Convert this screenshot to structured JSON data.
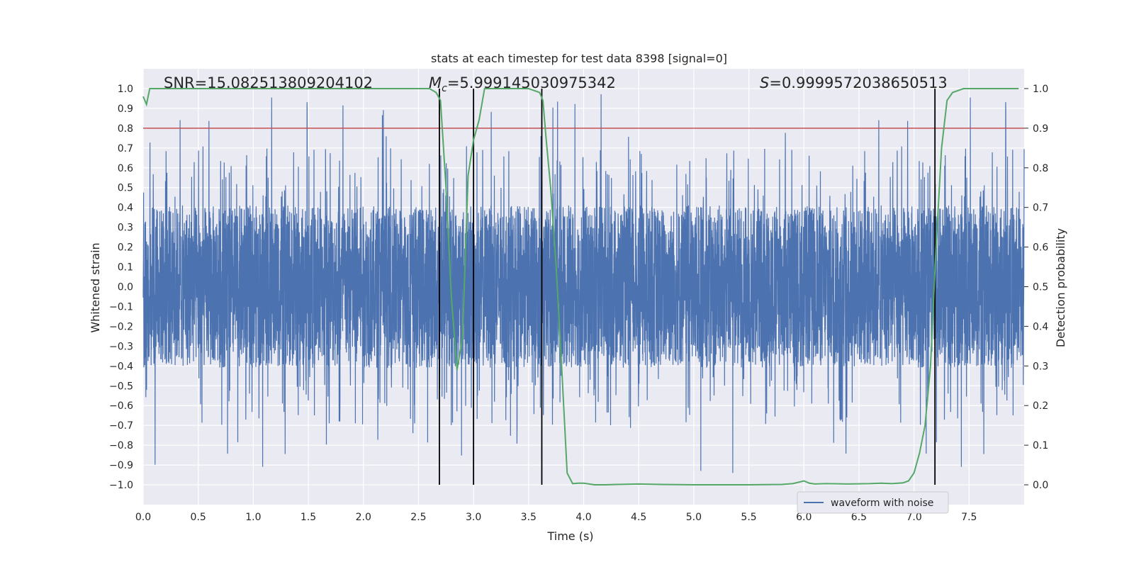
{
  "chart_data": {
    "type": "line",
    "title": "stats at each timestep for test data 8398 [signal=0]",
    "xlabel": "Time (s)",
    "ylabel": "Whitened strain",
    "y2label": "Detection probability",
    "xlim": [
      0.0,
      8.0
    ],
    "ylim": [
      -1.1,
      1.1
    ],
    "y2lim": [
      -0.05,
      1.05
    ],
    "xticks": [
      "0.0",
      "0.5",
      "1.0",
      "1.5",
      "2.0",
      "2.5",
      "3.0",
      "3.5",
      "4.0",
      "4.5",
      "5.0",
      "5.5",
      "6.0",
      "6.5",
      "7.0",
      "7.5"
    ],
    "yticks": [
      "−1.0",
      "−0.9",
      "−0.8",
      "−0.7",
      "−0.6",
      "−0.5",
      "−0.4",
      "−0.3",
      "−0.2",
      "−0.1",
      "0.0",
      "0.1",
      "0.2",
      "0.3",
      "0.4",
      "0.5",
      "0.6",
      "0.7",
      "0.8",
      "0.9",
      "1.0"
    ],
    "y2ticks": [
      "0.0",
      "0.1",
      "0.2",
      "0.3",
      "0.4",
      "0.5",
      "0.6",
      "0.7",
      "0.8",
      "0.9",
      "1.0"
    ],
    "annotations": {
      "snr": "SNR=15.082513809204102",
      "mc_symbol": "M",
      "mc_sub": "c",
      "mc_value": "=5.999145030975342",
      "s_symbol": "S",
      "s_value": "=0.9999572038650513"
    },
    "threshold": {
      "value": 0.9,
      "color": "#c44e52"
    },
    "vertical_lines": [
      2.69,
      3.0,
      3.62,
      7.19
    ],
    "series": [
      {
        "name": "waveform with noise",
        "color": "#4c72b0",
        "axis": "left",
        "description": "noise, amplitude mostly within ±0.6, peaks up to ±1.0"
      },
      {
        "name": "detection probability",
        "color": "#55a868",
        "axis": "right",
        "x": [
          0.0,
          0.03,
          0.06,
          0.1,
          0.2,
          0.5,
          1.0,
          1.5,
          2.0,
          2.5,
          2.6,
          2.66,
          2.7,
          2.75,
          2.8,
          2.85,
          2.9,
          2.95,
          3.0,
          3.05,
          3.1,
          3.15,
          3.2,
          3.3,
          3.5,
          3.6,
          3.63,
          3.66,
          3.7,
          3.75,
          3.8,
          3.85,
          3.9,
          3.95,
          4.0,
          4.1,
          4.2,
          4.3,
          4.5,
          4.7,
          5.0,
          5.5,
          5.8,
          5.9,
          6.0,
          6.05,
          6.1,
          6.2,
          6.4,
          6.6,
          6.7,
          6.8,
          6.9,
          6.95,
          7.0,
          7.05,
          7.1,
          7.15,
          7.2,
          7.25,
          7.3,
          7.35,
          7.45,
          7.6,
          7.8,
          7.95
        ],
        "values": [
          0.98,
          0.96,
          1.0,
          1.0,
          1.0,
          1.0,
          1.0,
          1.0,
          1.0,
          1.0,
          1.0,
          0.99,
          0.97,
          0.75,
          0.47,
          0.29,
          0.37,
          0.78,
          0.87,
          0.92,
          1.0,
          1.0,
          1.0,
          1.0,
          1.0,
          0.99,
          0.97,
          0.87,
          0.75,
          0.55,
          0.3,
          0.03,
          0.003,
          0.004,
          0.004,
          0.0,
          0.0,
          0.001,
          0.002,
          0.001,
          0.0,
          0.0,
          0.001,
          0.003,
          0.01,
          0.004,
          0.002,
          0.003,
          0.002,
          0.003,
          0.004,
          0.003,
          0.005,
          0.01,
          0.03,
          0.08,
          0.15,
          0.3,
          0.6,
          0.85,
          0.97,
          0.99,
          1.0,
          1.0,
          1.0,
          1.0
        ]
      }
    ],
    "legend": {
      "entries": [
        "waveform with noise"
      ],
      "location": "lower-right"
    }
  }
}
